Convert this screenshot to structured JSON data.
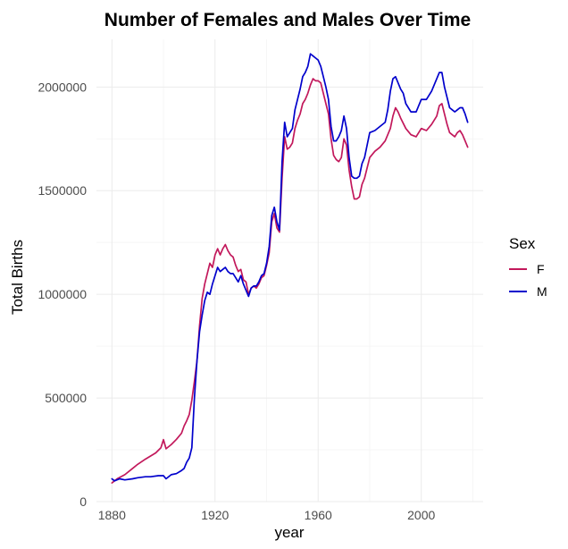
{
  "chart_data": {
    "type": "line",
    "title": "Number of Females and Males Over Time",
    "xlabel": "year",
    "ylabel": "Total Births",
    "xlim": [
      1874,
      2024
    ],
    "ylim": [
      0,
      2230000
    ],
    "x_ticks": [
      1880,
      1920,
      1960,
      2000
    ],
    "x_tick_labels": [
      "1880",
      "1920",
      "1960",
      "2000"
    ],
    "y_ticks": [
      0,
      500000,
      1000000,
      1500000,
      2000000
    ],
    "y_tick_labels": [
      "0",
      "500000",
      "1000000",
      "1500000",
      "2000000"
    ],
    "grid": true,
    "legend": {
      "title": "Sex",
      "position": "right"
    },
    "series": [
      {
        "name": "F",
        "color": "#c2185b",
        "points": [
          [
            1880,
            90000
          ],
          [
            1882,
            110000
          ],
          [
            1885,
            130000
          ],
          [
            1888,
            160000
          ],
          [
            1890,
            180000
          ],
          [
            1893,
            205000
          ],
          [
            1895,
            220000
          ],
          [
            1897,
            235000
          ],
          [
            1899,
            260000
          ],
          [
            1900,
            299000
          ],
          [
            1901,
            255000
          ],
          [
            1903,
            275000
          ],
          [
            1905,
            300000
          ],
          [
            1907,
            330000
          ],
          [
            1908,
            365000
          ],
          [
            1909,
            390000
          ],
          [
            1910,
            420000
          ],
          [
            1911,
            490000
          ],
          [
            1912,
            580000
          ],
          [
            1913,
            680000
          ],
          [
            1914,
            850000
          ],
          [
            1915,
            980000
          ],
          [
            1916,
            1050000
          ],
          [
            1917,
            1100000
          ],
          [
            1918,
            1150000
          ],
          [
            1919,
            1130000
          ],
          [
            1920,
            1190000
          ],
          [
            1921,
            1220000
          ],
          [
            1922,
            1190000
          ],
          [
            1923,
            1220000
          ],
          [
            1924,
            1240000
          ],
          [
            1925,
            1210000
          ],
          [
            1926,
            1190000
          ],
          [
            1927,
            1180000
          ],
          [
            1928,
            1140000
          ],
          [
            1929,
            1110000
          ],
          [
            1930,
            1120000
          ],
          [
            1931,
            1070000
          ],
          [
            1932,
            1060000
          ],
          [
            1933,
            1000000
          ],
          [
            1934,
            1030000
          ],
          [
            1935,
            1040000
          ],
          [
            1936,
            1030000
          ],
          [
            1937,
            1050000
          ],
          [
            1938,
            1080000
          ],
          [
            1939,
            1090000
          ],
          [
            1940,
            1140000
          ],
          [
            1941,
            1200000
          ],
          [
            1942,
            1350000
          ],
          [
            1943,
            1390000
          ],
          [
            1944,
            1320000
          ],
          [
            1945,
            1300000
          ],
          [
            1946,
            1560000
          ],
          [
            1947,
            1760000
          ],
          [
            1948,
            1700000
          ],
          [
            1949,
            1710000
          ],
          [
            1950,
            1730000
          ],
          [
            1951,
            1800000
          ],
          [
            1952,
            1840000
          ],
          [
            1953,
            1870000
          ],
          [
            1954,
            1920000
          ],
          [
            1955,
            1940000
          ],
          [
            1956,
            1970000
          ],
          [
            1957,
            2010000
          ],
          [
            1958,
            2040000
          ],
          [
            1959,
            2030000
          ],
          [
            1960,
            2030000
          ],
          [
            1961,
            2020000
          ],
          [
            1962,
            1970000
          ],
          [
            1963,
            1920000
          ],
          [
            1964,
            1870000
          ],
          [
            1965,
            1750000
          ],
          [
            1966,
            1670000
          ],
          [
            1967,
            1650000
          ],
          [
            1968,
            1640000
          ],
          [
            1969,
            1660000
          ],
          [
            1970,
            1750000
          ],
          [
            1971,
            1720000
          ],
          [
            1972,
            1600000
          ],
          [
            1973,
            1520000
          ],
          [
            1974,
            1460000
          ],
          [
            1975,
            1460000
          ],
          [
            1976,
            1470000
          ],
          [
            1977,
            1530000
          ],
          [
            1978,
            1560000
          ],
          [
            1979,
            1610000
          ],
          [
            1980,
            1660000
          ],
          [
            1982,
            1690000
          ],
          [
            1984,
            1710000
          ],
          [
            1986,
            1740000
          ],
          [
            1988,
            1800000
          ],
          [
            1989,
            1860000
          ],
          [
            1990,
            1900000
          ],
          [
            1991,
            1880000
          ],
          [
            1992,
            1850000
          ],
          [
            1994,
            1800000
          ],
          [
            1996,
            1770000
          ],
          [
            1998,
            1760000
          ],
          [
            2000,
            1800000
          ],
          [
            2002,
            1790000
          ],
          [
            2004,
            1820000
          ],
          [
            2006,
            1860000
          ],
          [
            2007,
            1910000
          ],
          [
            2008,
            1920000
          ],
          [
            2009,
            1870000
          ],
          [
            2010,
            1820000
          ],
          [
            2011,
            1780000
          ],
          [
            2012,
            1770000
          ],
          [
            2013,
            1760000
          ],
          [
            2014,
            1780000
          ],
          [
            2015,
            1790000
          ],
          [
            2016,
            1770000
          ],
          [
            2017,
            1740000
          ],
          [
            2018,
            1710000
          ]
        ]
      },
      {
        "name": "M",
        "color": "#0000cc",
        "points": [
          [
            1880,
            110000
          ],
          [
            1881,
            100000
          ],
          [
            1883,
            110000
          ],
          [
            1885,
            105000
          ],
          [
            1888,
            110000
          ],
          [
            1890,
            115000
          ],
          [
            1893,
            120000
          ],
          [
            1895,
            120000
          ],
          [
            1898,
            125000
          ],
          [
            1900,
            125000
          ],
          [
            1901,
            110000
          ],
          [
            1903,
            130000
          ],
          [
            1905,
            135000
          ],
          [
            1907,
            150000
          ],
          [
            1908,
            160000
          ],
          [
            1909,
            190000
          ],
          [
            1910,
            210000
          ],
          [
            1911,
            260000
          ],
          [
            1912,
            500000
          ],
          [
            1913,
            680000
          ],
          [
            1914,
            820000
          ],
          [
            1915,
            900000
          ],
          [
            1916,
            970000
          ],
          [
            1917,
            1010000
          ],
          [
            1918,
            1000000
          ],
          [
            1919,
            1050000
          ],
          [
            1920,
            1090000
          ],
          [
            1921,
            1130000
          ],
          [
            1922,
            1110000
          ],
          [
            1923,
            1120000
          ],
          [
            1924,
            1130000
          ],
          [
            1925,
            1110000
          ],
          [
            1926,
            1100000
          ],
          [
            1927,
            1100000
          ],
          [
            1928,
            1080000
          ],
          [
            1929,
            1060000
          ],
          [
            1930,
            1090000
          ],
          [
            1931,
            1050000
          ],
          [
            1932,
            1020000
          ],
          [
            1933,
            990000
          ],
          [
            1934,
            1030000
          ],
          [
            1935,
            1040000
          ],
          [
            1936,
            1040000
          ],
          [
            1937,
            1060000
          ],
          [
            1938,
            1090000
          ],
          [
            1939,
            1100000
          ],
          [
            1940,
            1150000
          ],
          [
            1941,
            1230000
          ],
          [
            1942,
            1380000
          ],
          [
            1943,
            1420000
          ],
          [
            1944,
            1350000
          ],
          [
            1945,
            1310000
          ],
          [
            1946,
            1640000
          ],
          [
            1947,
            1830000
          ],
          [
            1948,
            1760000
          ],
          [
            1949,
            1780000
          ],
          [
            1950,
            1800000
          ],
          [
            1951,
            1890000
          ],
          [
            1952,
            1940000
          ],
          [
            1953,
            1990000
          ],
          [
            1954,
            2050000
          ],
          [
            1955,
            2070000
          ],
          [
            1956,
            2100000
          ],
          [
            1957,
            2160000
          ],
          [
            1958,
            2150000
          ],
          [
            1959,
            2140000
          ],
          [
            1960,
            2130000
          ],
          [
            1961,
            2100000
          ],
          [
            1962,
            2050000
          ],
          [
            1963,
            2000000
          ],
          [
            1964,
            1940000
          ],
          [
            1965,
            1810000
          ],
          [
            1966,
            1740000
          ],
          [
            1967,
            1740000
          ],
          [
            1968,
            1760000
          ],
          [
            1969,
            1790000
          ],
          [
            1970,
            1860000
          ],
          [
            1971,
            1800000
          ],
          [
            1972,
            1660000
          ],
          [
            1973,
            1570000
          ],
          [
            1974,
            1560000
          ],
          [
            1975,
            1560000
          ],
          [
            1976,
            1570000
          ],
          [
            1977,
            1630000
          ],
          [
            1978,
            1660000
          ],
          [
            1979,
            1720000
          ],
          [
            1980,
            1780000
          ],
          [
            1982,
            1790000
          ],
          [
            1984,
            1810000
          ],
          [
            1986,
            1830000
          ],
          [
            1987,
            1890000
          ],
          [
            1988,
            1980000
          ],
          [
            1989,
            2040000
          ],
          [
            1990,
            2050000
          ],
          [
            1991,
            2020000
          ],
          [
            1992,
            1990000
          ],
          [
            1993,
            1970000
          ],
          [
            1994,
            1920000
          ],
          [
            1996,
            1880000
          ],
          [
            1998,
            1880000
          ],
          [
            2000,
            1940000
          ],
          [
            2002,
            1940000
          ],
          [
            2004,
            1980000
          ],
          [
            2006,
            2040000
          ],
          [
            2007,
            2070000
          ],
          [
            2008,
            2070000
          ],
          [
            2009,
            2000000
          ],
          [
            2010,
            1950000
          ],
          [
            2011,
            1900000
          ],
          [
            2012,
            1890000
          ],
          [
            2013,
            1880000
          ],
          [
            2014,
            1890000
          ],
          [
            2015,
            1900000
          ],
          [
            2016,
            1900000
          ],
          [
            2017,
            1870000
          ],
          [
            2018,
            1830000
          ]
        ]
      }
    ]
  }
}
